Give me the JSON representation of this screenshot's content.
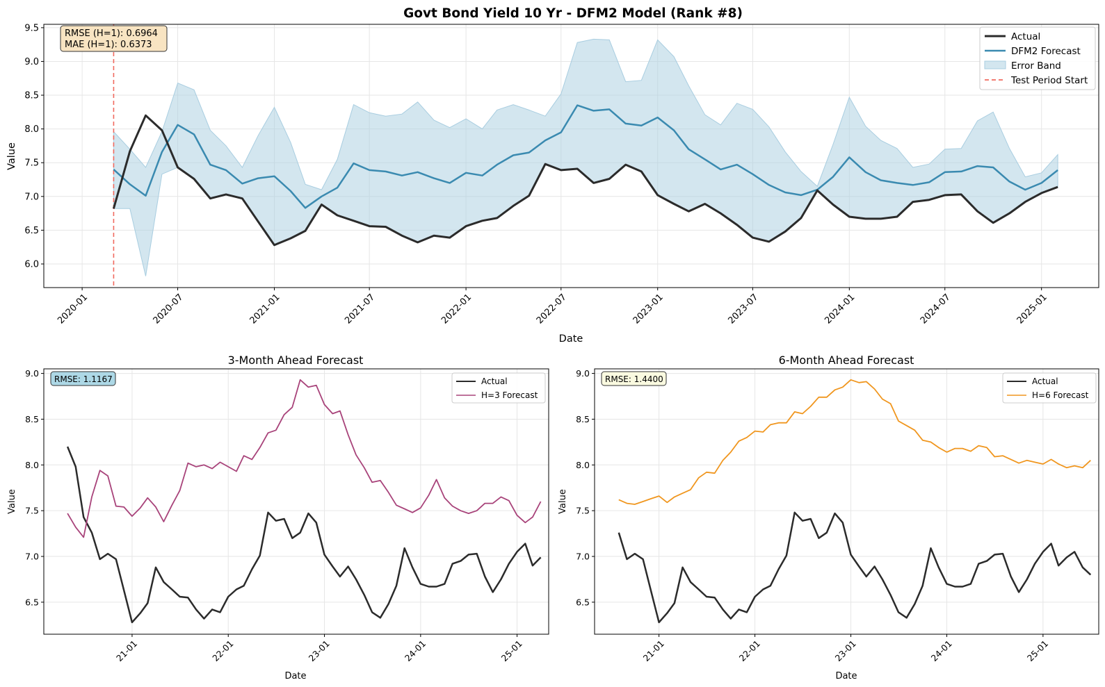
{
  "chart_data": [
    {
      "type": "line",
      "title": "Govt Bond Yield 10 Yr - DFM2 Model (Rank #8)",
      "xlabel": "Date",
      "ylabel": "Value",
      "ylim": [
        5.65,
        9.55
      ],
      "xlim": [
        "2019-10-20",
        "2025-04-20"
      ],
      "yticks": [
        "6.0",
        "6.5",
        "7.0",
        "7.5",
        "8.0",
        "8.5",
        "9.0",
        "9.5"
      ],
      "xticks": [
        "2020-01",
        "2020-07",
        "2021-01",
        "2021-07",
        "2022-01",
        "2022-07",
        "2023-01",
        "2023-07",
        "2024-01",
        "2024-07",
        "2025-01"
      ],
      "grid": true,
      "legend_position": "top-right",
      "annotation": [
        "RMSE (H=1): 0.6964",
        "MAE (H=1): 0.6373"
      ],
      "vline": {
        "x": "2020-03-01",
        "name": "Test Period Start"
      },
      "x": [
        "2020-03",
        "2020-04",
        "2020-05",
        "2020-06",
        "2020-07",
        "2020-08",
        "2020-09",
        "2020-10",
        "2020-11",
        "2020-12",
        "2021-01",
        "2021-02",
        "2021-03",
        "2021-04",
        "2021-05",
        "2021-06",
        "2021-07",
        "2021-08",
        "2021-09",
        "2021-10",
        "2021-11",
        "2021-12",
        "2022-01",
        "2022-02",
        "2022-03",
        "2022-04",
        "2022-05",
        "2022-06",
        "2022-07",
        "2022-08",
        "2022-09",
        "2022-10",
        "2022-11",
        "2022-12",
        "2023-01",
        "2023-02",
        "2023-03",
        "2023-04",
        "2023-05",
        "2023-06",
        "2023-07",
        "2023-08",
        "2023-09",
        "2023-10",
        "2023-11",
        "2023-12",
        "2024-01",
        "2024-02",
        "2024-03",
        "2024-04",
        "2024-05",
        "2024-06",
        "2024-07",
        "2024-08",
        "2024-09",
        "2024-10",
        "2024-11",
        "2024-12",
        "2025-01",
        "2025-02"
      ],
      "series": [
        {
          "name": "Actual",
          "color": "#2b2b2b",
          "values": [
            6.82,
            7.67,
            8.2,
            7.98,
            7.43,
            7.26,
            6.97,
            7.03,
            6.97,
            6.63,
            6.28,
            6.38,
            6.49,
            6.88,
            6.72,
            6.64,
            6.56,
            6.55,
            6.42,
            6.32,
            6.42,
            6.39,
            6.56,
            6.64,
            6.68,
            6.86,
            7.01,
            7.48,
            7.39,
            7.41,
            7.2,
            7.26,
            7.47,
            7.37,
            7.02,
            6.89,
            6.78,
            6.89,
            6.75,
            6.58,
            6.39,
            6.33,
            6.48,
            6.68,
            7.09,
            6.88,
            6.7,
            6.67,
            6.67,
            6.7,
            6.92,
            6.95,
            7.02,
            7.03,
            6.78,
            6.61,
            6.75,
            6.92,
            7.05,
            7.14
          ]
        },
        {
          "name": "DFM2 Forecast",
          "color": "#3a8ab0",
          "values": [
            7.4,
            7.18,
            7.01,
            7.66,
            8.06,
            7.92,
            7.47,
            7.39,
            7.19,
            7.27,
            7.3,
            7.08,
            6.83,
            7.0,
            7.13,
            7.49,
            7.39,
            7.37,
            7.31,
            7.36,
            7.27,
            7.2,
            7.35,
            7.31,
            7.47,
            7.61,
            7.65,
            7.83,
            7.95,
            8.35,
            8.27,
            8.29,
            8.08,
            8.05,
            8.17,
            7.98,
            7.7,
            7.55,
            7.4,
            7.47,
            7.33,
            7.17,
            7.06,
            7.02,
            7.1,
            7.29,
            7.58,
            7.36,
            7.24,
            7.2,
            7.17,
            7.21,
            7.36,
            7.37,
            7.45,
            7.43,
            7.22,
            7.1,
            7.2,
            7.39
          ]
        },
        {
          "name": "Error Band",
          "color": "#a8cde0",
          "upper": [
            7.96,
            7.7,
            7.43,
            7.96,
            8.68,
            8.58,
            7.98,
            7.75,
            7.43,
            7.9,
            8.32,
            7.8,
            7.18,
            7.1,
            7.55,
            8.36,
            8.24,
            8.19,
            8.22,
            8.4,
            8.13,
            8.02,
            8.15,
            8.0,
            8.28,
            8.36,
            8.28,
            8.19,
            8.52,
            9.28,
            9.33,
            9.32,
            8.7,
            8.72,
            9.32,
            9.07,
            8.64,
            8.21,
            8.06,
            8.38,
            8.29,
            8.03,
            7.66,
            7.37,
            7.15,
            7.77,
            8.47,
            8.04,
            7.83,
            7.71,
            7.43,
            7.48,
            7.7,
            7.71,
            8.12,
            8.25,
            7.71,
            7.29,
            7.35,
            7.62
          ],
          "lower": [
            6.82,
            6.82,
            5.82,
            7.33,
            7.43,
            7.26,
            6.97,
            7.03,
            6.97,
            6.63,
            6.28,
            6.38,
            6.49,
            6.88,
            6.72,
            6.64,
            6.56,
            6.55,
            6.42,
            6.32,
            6.42,
            6.39,
            6.56,
            6.64,
            6.68,
            6.86,
            7.01,
            7.48,
            7.39,
            7.41,
            7.2,
            7.26,
            7.47,
            7.37,
            7.02,
            6.89,
            6.78,
            6.89,
            6.75,
            6.58,
            6.39,
            6.33,
            6.48,
            6.68,
            7.09,
            6.88,
            6.7,
            6.67,
            6.67,
            6.7,
            6.92,
            6.95,
            7.02,
            7.03,
            6.78,
            6.61,
            6.75,
            6.92,
            7.05,
            7.14
          ]
        }
      ]
    },
    {
      "type": "line",
      "title": "3-Month Ahead Forecast",
      "xlabel": "Date",
      "ylabel": "Value",
      "ylim": [
        6.15,
        9.05
      ],
      "xlim": [
        "2020-02-01",
        "2025-05-01"
      ],
      "yticks": [
        "6.5",
        "7.0",
        "7.5",
        "8.0",
        "8.5",
        "9.0"
      ],
      "xticks": [
        "21-01",
        "22-01",
        "23-01",
        "24-01",
        "25-01"
      ],
      "grid": true,
      "legend_position": "top-right",
      "annotation": [
        "RMSE: 1.1167"
      ],
      "x": [
        "2020-05",
        "2020-06",
        "2020-07",
        "2020-08",
        "2020-09",
        "2020-10",
        "2020-11",
        "2020-12",
        "2021-01",
        "2021-02",
        "2021-03",
        "2021-04",
        "2021-05",
        "2021-06",
        "2021-07",
        "2021-08",
        "2021-09",
        "2021-10",
        "2021-11",
        "2021-12",
        "2022-01",
        "2022-02",
        "2022-03",
        "2022-04",
        "2022-05",
        "2022-06",
        "2022-07",
        "2022-08",
        "2022-09",
        "2022-10",
        "2022-11",
        "2022-12",
        "2023-01",
        "2023-02",
        "2023-03",
        "2023-04",
        "2023-05",
        "2023-06",
        "2023-07",
        "2023-08",
        "2023-09",
        "2023-10",
        "2023-11",
        "2023-12",
        "2024-01",
        "2024-02",
        "2024-03",
        "2024-04",
        "2024-05",
        "2024-06",
        "2024-07",
        "2024-08",
        "2024-09",
        "2024-10",
        "2024-11",
        "2024-12",
        "2025-01",
        "2025-02",
        "2025-03",
        "2025-04"
      ],
      "series": [
        {
          "name": "Actual",
          "color": "#2b2b2b",
          "values": [
            8.2,
            7.98,
            7.43,
            7.26,
            6.97,
            7.03,
            6.97,
            6.63,
            6.28,
            6.38,
            6.49,
            6.88,
            6.72,
            6.64,
            6.56,
            6.55,
            6.42,
            6.32,
            6.42,
            6.39,
            6.56,
            6.64,
            6.68,
            6.86,
            7.01,
            7.48,
            7.39,
            7.41,
            7.2,
            7.26,
            7.47,
            7.37,
            7.02,
            6.89,
            6.78,
            6.89,
            6.75,
            6.58,
            6.39,
            6.33,
            6.48,
            6.68,
            7.09,
            6.88,
            6.7,
            6.67,
            6.67,
            6.7,
            6.92,
            6.95,
            7.02,
            7.03,
            6.78,
            6.61,
            6.75,
            6.92,
            7.05,
            7.14,
            6.9,
            6.99
          ]
        },
        {
          "name": "H=3 Forecast",
          "color": "#a8437a",
          "values": [
            7.47,
            7.32,
            7.21,
            7.65,
            7.94,
            7.88,
            7.55,
            7.54,
            7.44,
            7.53,
            7.64,
            7.54,
            7.38,
            7.56,
            7.72,
            8.02,
            7.98,
            8.0,
            7.96,
            8.03,
            7.98,
            7.93,
            8.1,
            8.06,
            8.19,
            8.35,
            8.38,
            8.55,
            8.63,
            8.93,
            8.85,
            8.87,
            8.66,
            8.56,
            8.59,
            8.33,
            8.11,
            7.97,
            7.81,
            7.83,
            7.7,
            7.56,
            7.52,
            7.48,
            7.53,
            7.67,
            7.84,
            7.64,
            7.55,
            7.5,
            7.47,
            7.5,
            7.58,
            7.58,
            7.65,
            7.61,
            7.45,
            7.37,
            7.43,
            7.6
          ]
        }
      ]
    },
    {
      "type": "line",
      "title": "6-Month Ahead Forecast",
      "xlabel": "Date",
      "ylabel": "Value",
      "ylim": [
        6.15,
        9.05
      ],
      "xlim": [
        "2020-05-01",
        "2025-08-01"
      ],
      "yticks": [
        "6.5",
        "7.0",
        "7.5",
        "8.0",
        "8.5",
        "9.0"
      ],
      "xticks": [
        "21-01",
        "22-01",
        "23-01",
        "24-01",
        "25-01"
      ],
      "grid": true,
      "legend_position": "top-right",
      "annotation": [
        "RMSE: 1.4400"
      ],
      "x": [
        "2020-08",
        "2020-09",
        "2020-10",
        "2020-11",
        "2020-12",
        "2021-01",
        "2021-02",
        "2021-03",
        "2021-04",
        "2021-05",
        "2021-06",
        "2021-07",
        "2021-08",
        "2021-09",
        "2021-10",
        "2021-11",
        "2021-12",
        "2022-01",
        "2022-02",
        "2022-03",
        "2022-04",
        "2022-05",
        "2022-06",
        "2022-07",
        "2022-08",
        "2022-09",
        "2022-10",
        "2022-11",
        "2022-12",
        "2023-01",
        "2023-02",
        "2023-03",
        "2023-04",
        "2023-05",
        "2023-06",
        "2023-07",
        "2023-08",
        "2023-09",
        "2023-10",
        "2023-11",
        "2023-12",
        "2024-01",
        "2024-02",
        "2024-03",
        "2024-04",
        "2024-05",
        "2024-06",
        "2024-07",
        "2024-08",
        "2024-09",
        "2024-10",
        "2024-11",
        "2024-12",
        "2025-01",
        "2025-02",
        "2025-03",
        "2025-04",
        "2025-05",
        "2025-06",
        "2025-07"
      ],
      "series": [
        {
          "name": "Actual",
          "color": "#2b2b2b",
          "values": [
            7.26,
            6.97,
            7.03,
            6.97,
            6.63,
            6.28,
            6.38,
            6.49,
            6.88,
            6.72,
            6.64,
            6.56,
            6.55,
            6.42,
            6.32,
            6.42,
            6.39,
            6.56,
            6.64,
            6.68,
            6.86,
            7.01,
            7.48,
            7.39,
            7.41,
            7.2,
            7.26,
            7.47,
            7.37,
            7.02,
            6.89,
            6.78,
            6.89,
            6.75,
            6.58,
            6.39,
            6.33,
            6.48,
            6.68,
            7.09,
            6.88,
            6.7,
            6.67,
            6.67,
            6.7,
            6.92,
            6.95,
            7.02,
            7.03,
            6.78,
            6.61,
            6.75,
            6.92,
            7.05,
            7.14,
            6.9,
            6.99,
            7.05,
            6.88,
            6.8
          ]
        },
        {
          "name": "H=6 Forecast",
          "color": "#f0961e",
          "values": [
            7.62,
            7.58,
            7.57,
            7.6,
            7.63,
            7.66,
            7.59,
            7.65,
            7.69,
            7.73,
            7.86,
            7.92,
            7.91,
            8.05,
            8.14,
            8.26,
            8.3,
            8.37,
            8.36,
            8.44,
            8.46,
            8.46,
            8.58,
            8.56,
            8.64,
            8.74,
            8.74,
            8.82,
            8.85,
            8.93,
            8.9,
            8.91,
            8.83,
            8.72,
            8.67,
            8.48,
            8.43,
            8.38,
            8.27,
            8.25,
            8.19,
            8.14,
            8.18,
            8.18,
            8.15,
            8.21,
            8.19,
            8.09,
            8.1,
            8.06,
            8.02,
            8.05,
            8.03,
            8.01,
            8.06,
            8.01,
            7.97,
            7.99,
            7.97,
            8.05
          ]
        }
      ]
    }
  ]
}
